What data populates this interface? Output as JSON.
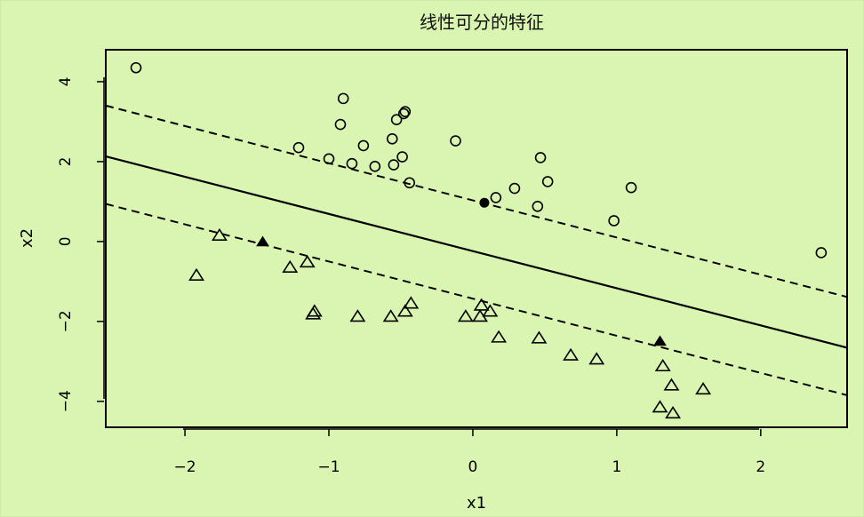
{
  "chart_data": {
    "type": "scatter",
    "title": "线性可分的特征",
    "xlabel": "x1",
    "ylabel": "x2",
    "xlim": [
      -2.55,
      2.6
    ],
    "ylim": [
      -4.65,
      4.8
    ],
    "xticks": [
      -2,
      -1,
      0,
      1,
      2
    ],
    "yticks": [
      -4,
      -2,
      0,
      2,
      4
    ],
    "tick_labels": {
      "x": [
        "−2",
        "−1",
        "0",
        "1",
        "2"
      ],
      "y": [
        "−4",
        "−2",
        "0",
        "2",
        "4"
      ]
    },
    "grid": false,
    "legend": "none",
    "series": [
      {
        "marker": "open-circle",
        "points": [
          [
            -2.34,
            4.35
          ],
          [
            -0.9,
            3.58
          ],
          [
            -0.47,
            3.25
          ],
          [
            -0.48,
            3.2
          ],
          [
            -0.53,
            3.05
          ],
          [
            -0.92,
            2.93
          ],
          [
            -0.56,
            2.57
          ],
          [
            -0.12,
            2.52
          ],
          [
            -1.21,
            2.35
          ],
          [
            -0.76,
            2.4
          ],
          [
            -0.49,
            2.12
          ],
          [
            0.47,
            2.1
          ],
          [
            -1.0,
            2.07
          ],
          [
            -0.84,
            1.95
          ],
          [
            -0.68,
            1.88
          ],
          [
            -0.55,
            1.92
          ],
          [
            -0.44,
            1.47
          ],
          [
            0.52,
            1.5
          ],
          [
            1.1,
            1.35
          ],
          [
            0.29,
            1.33
          ],
          [
            0.16,
            1.1
          ],
          [
            0.45,
            0.88
          ],
          [
            0.98,
            0.52
          ],
          [
            2.42,
            -0.28
          ]
        ]
      },
      {
        "marker": "open-triangle",
        "points": [
          [
            -1.76,
            0.15
          ],
          [
            -1.92,
            -0.85
          ],
          [
            -1.27,
            -0.65
          ],
          [
            -1.15,
            -0.52
          ],
          [
            -1.1,
            -1.75
          ],
          [
            -1.11,
            -1.82
          ],
          [
            -0.8,
            -1.88
          ],
          [
            -0.57,
            -1.88
          ],
          [
            -0.47,
            -1.75
          ],
          [
            -0.43,
            -1.55
          ],
          [
            -0.05,
            -1.88
          ],
          [
            0.06,
            -1.6
          ],
          [
            0.05,
            -1.88
          ],
          [
            0.12,
            -1.75
          ],
          [
            0.18,
            -2.4
          ],
          [
            0.46,
            -2.42
          ],
          [
            0.68,
            -2.85
          ],
          [
            0.86,
            -2.95
          ],
          [
            1.32,
            -3.12
          ],
          [
            1.38,
            -3.6
          ],
          [
            1.6,
            -3.7
          ],
          [
            1.3,
            -4.15
          ],
          [
            1.39,
            -4.3
          ]
        ]
      },
      {
        "marker": "filled-circle",
        "points": [
          [
            0.08,
            0.97
          ]
        ]
      },
      {
        "marker": "filled-triangle",
        "points": [
          [
            -1.46,
            -0.01
          ],
          [
            1.3,
            -2.5
          ]
        ]
      }
    ],
    "lines": [
      {
        "style": "solid",
        "intercept": -0.24,
        "slope": -0.93
      },
      {
        "style": "dashed",
        "intercept": 1.03,
        "slope": -0.93
      },
      {
        "style": "dashed",
        "intercept": -1.43,
        "slope": -0.93
      }
    ]
  }
}
